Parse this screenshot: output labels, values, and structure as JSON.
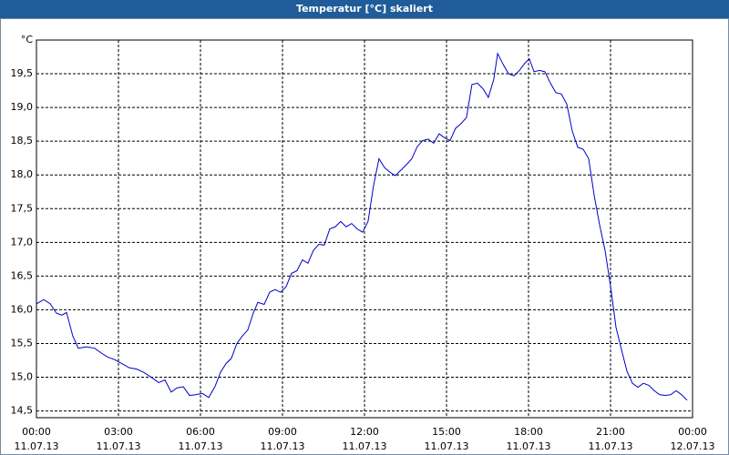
{
  "chart_data": {
    "type": "line",
    "title": "Temperatur [°C] skaliert",
    "x": [
      0,
      0.27,
      0.5,
      0.73,
      0.93,
      1.1,
      1.33,
      1.53,
      1.83,
      2.13,
      2.37,
      2.6,
      2.87,
      3.13,
      3.4,
      3.67,
      3.93,
      4.2,
      4.47,
      4.7,
      4.93,
      5.13,
      5.37,
      5.6,
      5.83,
      6.07,
      6.3,
      6.53,
      6.73,
      6.93,
      7.13,
      7.33,
      7.53,
      7.73,
      7.93,
      8.1,
      8.33,
      8.53,
      8.73,
      8.93,
      9.13,
      9.33,
      9.53,
      9.73,
      9.93,
      10.13,
      10.33,
      10.53,
      10.73,
      10.93,
      11.13,
      11.33,
      11.53,
      11.73,
      11.93,
      12.13,
      12.33,
      12.53,
      12.73,
      12.93,
      13.13,
      13.33,
      13.53,
      13.73,
      13.93,
      14.13,
      14.33,
      14.53,
      14.73,
      14.93,
      15.13,
      15.33,
      15.53,
      15.73,
      15.93,
      16.13,
      16.33,
      16.53,
      16.73,
      16.87,
      17.07,
      17.27,
      17.47,
      17.67,
      17.87,
      18.03,
      18.2,
      18.4,
      18.6,
      18.8,
      19,
      19.2,
      19.4,
      19.6,
      19.8,
      20,
      20.2,
      20.4,
      20.6,
      20.8,
      21,
      21.2,
      21.4,
      21.6,
      21.8,
      22,
      22.2,
      22.4,
      22.6,
      22.8,
      23,
      23.2,
      23.4,
      23.6,
      23.8
    ],
    "values": [
      16.09,
      16.15,
      16.09,
      15.95,
      15.92,
      15.96,
      15.61,
      15.43,
      15.45,
      15.43,
      15.36,
      15.3,
      15.26,
      15.2,
      15.14,
      15.12,
      15.07,
      15.0,
      14.92,
      14.96,
      14.78,
      14.84,
      14.86,
      14.73,
      14.74,
      14.76,
      14.7,
      14.86,
      15.07,
      15.2,
      15.28,
      15.5,
      15.61,
      15.7,
      15.95,
      16.11,
      16.08,
      16.26,
      16.3,
      16.26,
      16.34,
      16.54,
      16.58,
      16.74,
      16.69,
      16.88,
      16.97,
      16.96,
      17.2,
      17.23,
      17.31,
      17.23,
      17.28,
      17.2,
      17.15,
      17.31,
      17.84,
      18.24,
      18.11,
      18.04,
      17.99,
      18.07,
      18.15,
      18.24,
      18.42,
      18.51,
      18.53,
      18.47,
      18.61,
      18.55,
      18.51,
      18.69,
      18.76,
      18.85,
      19.34,
      19.36,
      19.28,
      19.15,
      19.42,
      19.8,
      19.64,
      19.5,
      19.47,
      19.55,
      19.66,
      19.72,
      19.53,
      19.55,
      19.53,
      19.36,
      19.22,
      19.2,
      19.05,
      18.65,
      18.41,
      18.38,
      18.24,
      17.7,
      17.26,
      16.88,
      16.35,
      15.74,
      15.41,
      15.09,
      14.91,
      14.85,
      14.91,
      14.88,
      14.8,
      14.74,
      14.73,
      14.74,
      14.8,
      14.74,
      14.66
    ],
    "color": "#0000c8",
    "xlim": [
      0,
      24
    ],
    "xticks": [
      {
        "value": 0,
        "label": "00:00",
        "date": "11.07.13"
      },
      {
        "value": 3,
        "label": "03:00",
        "date": "11.07.13"
      },
      {
        "value": 6,
        "label": "06:00",
        "date": "11.07.13"
      },
      {
        "value": 9,
        "label": "09:00",
        "date": "11.07.13"
      },
      {
        "value": 12,
        "label": "12:00",
        "date": "11.07.13"
      },
      {
        "value": 15,
        "label": "15:00",
        "date": "11.07.13"
      },
      {
        "value": 18,
        "label": "18:00",
        "date": "11.07.13"
      },
      {
        "value": 21,
        "label": "21:00",
        "date": "11.07.13"
      },
      {
        "value": 24,
        "label": "00:00",
        "date": "12.07.13"
      }
    ],
    "ylim": [
      14.4,
      20.0
    ],
    "yticks": [
      {
        "value": 14.5,
        "label": "14,5"
      },
      {
        "value": 15,
        "label": "15,0"
      },
      {
        "value": 15.5,
        "label": "15,5"
      },
      {
        "value": 16,
        "label": "16,0"
      },
      {
        "value": 16.5,
        "label": "16,5"
      },
      {
        "value": 17,
        "label": "17,0"
      },
      {
        "value": 17.5,
        "label": "17,5"
      },
      {
        "value": 18,
        "label": "18,0"
      },
      {
        "value": 18.5,
        "label": "18,5"
      },
      {
        "value": 19,
        "label": "19,0"
      },
      {
        "value": 19.5,
        "label": "19,5"
      },
      {
        "value": 20,
        "label": "°C"
      }
    ],
    "grid": true
  }
}
